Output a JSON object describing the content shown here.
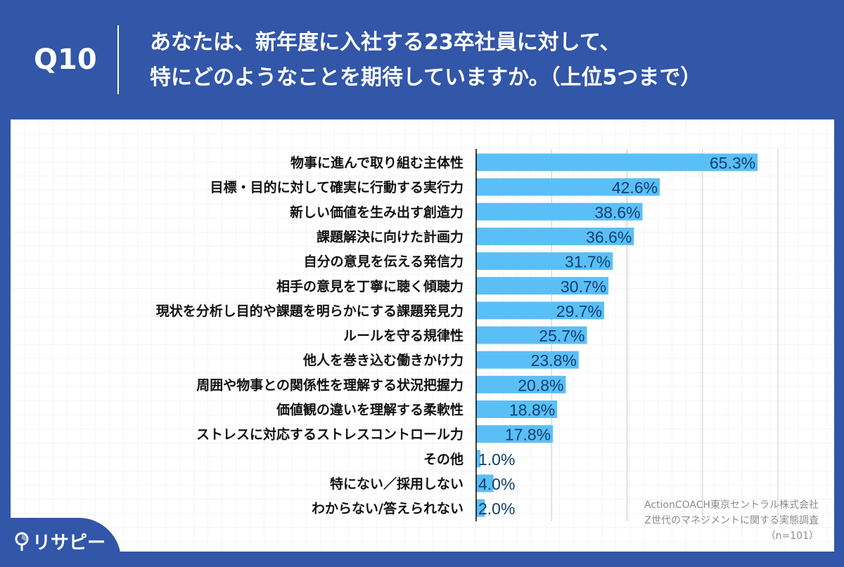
{
  "header": {
    "question": "Q10",
    "title_lines": [
      "あなたは、新年度に入社する23卒社員に対して、",
      "特にどのようなことを期待していますか。（上位5つまで）"
    ]
  },
  "source": {
    "lines": [
      "ActionCOACH東京セントラル株式会社",
      "Z世代のマネジメントに関する実態調査",
      "（n=101）"
    ]
  },
  "logo": {
    "text": "リサピー"
  },
  "colors": {
    "background": "#3256a8",
    "bar": "#5bbff7",
    "label": "#0d3f70"
  },
  "chart_data": {
    "type": "bar",
    "orientation": "horizontal",
    "xlim": [
      0,
      70
    ],
    "grid": true,
    "grid_step": 17.5,
    "categories": [
      "物事に進んで取り組む主体性",
      "目標・目的に対して確実に行動する実行力",
      "新しい価値を生み出す創造力",
      "課題解決に向けた計画力",
      "自分の意見を伝える発信力",
      "相手の意見を丁寧に聴く傾聴力",
      "現状を分析し目的や課題を明らかにする課題発見力",
      "ルールを守る規律性",
      "他人を巻き込む働きかけ力",
      "周囲や物事との関係性を理解する状況把握力",
      "価値観の違いを理解する柔軟性",
      "ストレスに対応するストレスコントロール力",
      "その他",
      "特にない／採用しない",
      "わからない/答えられない"
    ],
    "values": [
      65.3,
      42.6,
      38.6,
      36.6,
      31.7,
      30.7,
      29.7,
      25.7,
      23.8,
      20.8,
      18.8,
      17.8,
      1.0,
      4.0,
      2.0
    ],
    "labels": [
      "65.3%",
      "42.6%",
      "38.6%",
      "36.6%",
      "31.7%",
      "30.7%",
      "29.7%",
      "25.7%",
      "23.8%",
      "20.8%",
      "18.8%",
      "17.8%",
      "1.0%",
      "4.0%",
      "2.0%"
    ]
  }
}
